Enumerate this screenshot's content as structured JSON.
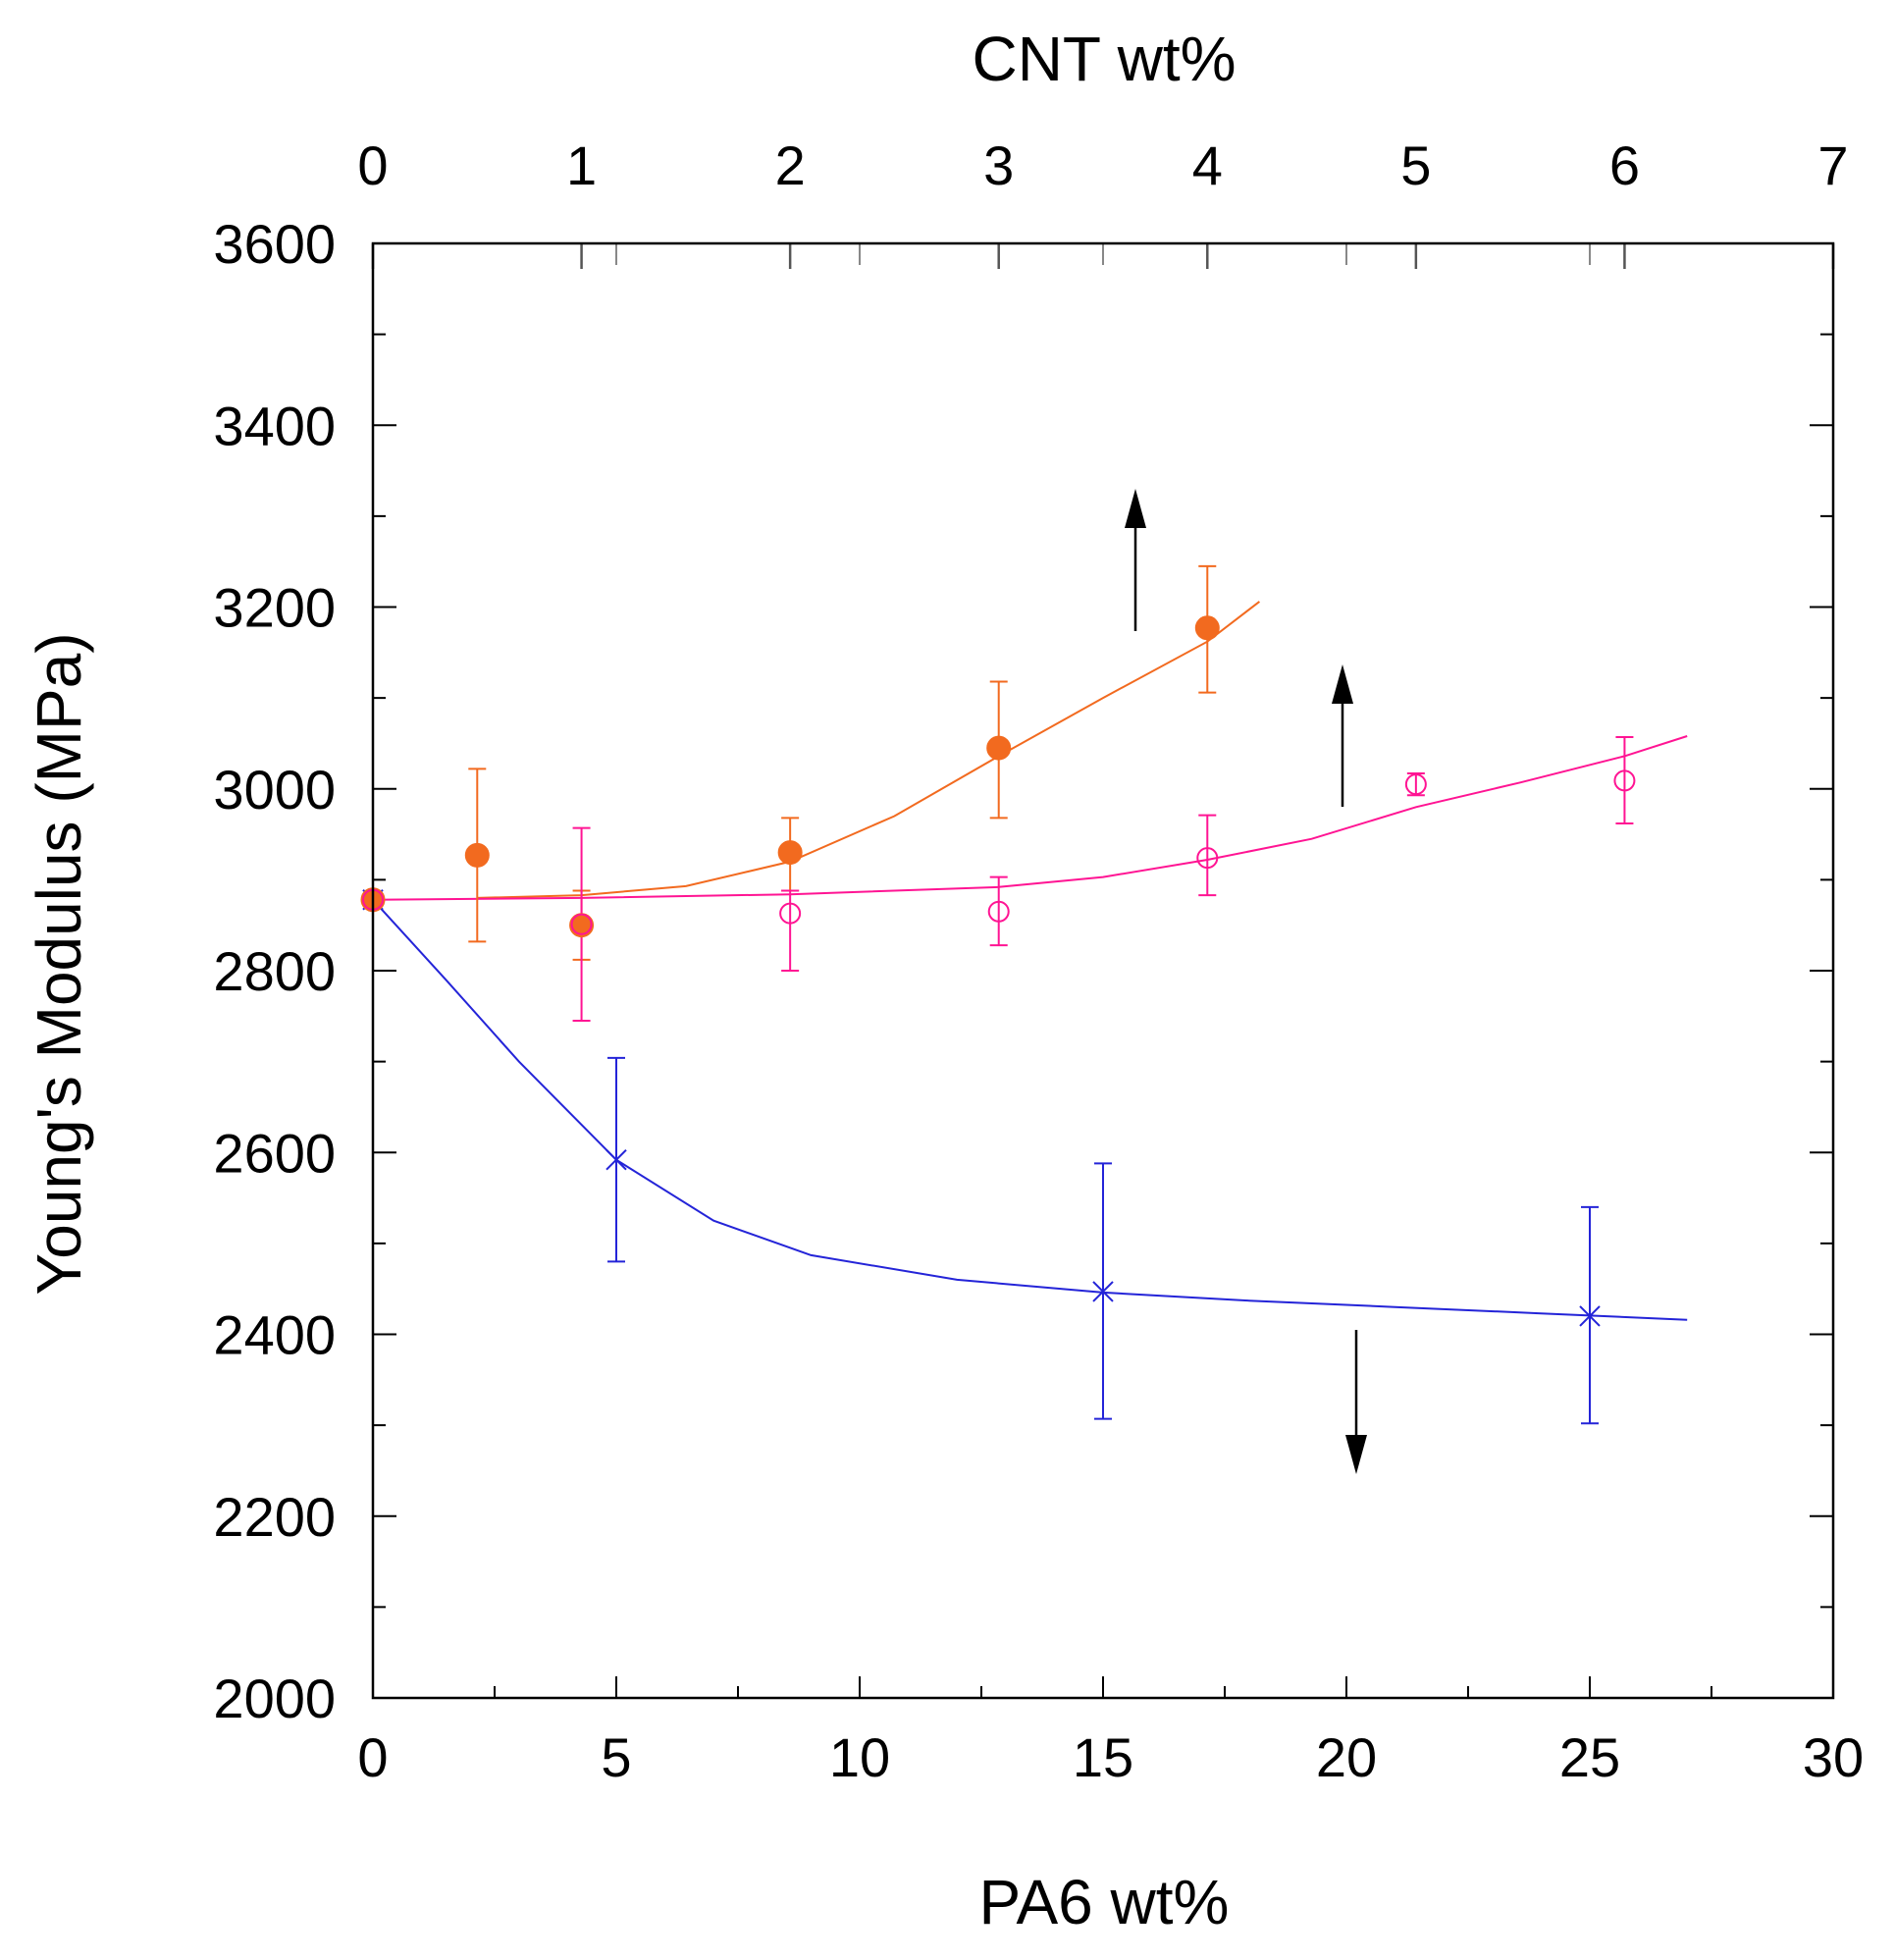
{
  "chart_data": {
    "type": "scatter",
    "title": "",
    "xlabel": "PA6 wt%",
    "x2label": "CNT wt%",
    "ylabel": "Young's Modulus (MPa)",
    "xlim": [
      0,
      30
    ],
    "x2lim": [
      0,
      7
    ],
    "ylim": [
      2000,
      3600
    ],
    "xticks": [
      "0",
      "5",
      "10",
      "15",
      "20",
      "25",
      "30"
    ],
    "x2ticks": [
      "0",
      "1",
      "2",
      "3",
      "4",
      "5",
      "6",
      "7"
    ],
    "yticks": [
      "2000",
      "2200",
      "2400",
      "2600",
      "2800",
      "3000",
      "3200",
      "3400",
      "3600"
    ],
    "grid": false,
    "series": [
      {
        "name": "PA6 (blue, bottom axis)",
        "axis": "bottom",
        "marker": "x",
        "color": "#2424d8",
        "x": [
          0,
          5,
          15,
          25
        ],
        "y": [
          2878,
          2592,
          2447,
          2420
        ],
        "err_low": [
          2878,
          2480,
          2307,
          2302
        ],
        "err_high": [
          2878,
          2704,
          2588,
          2540
        ],
        "fit_x": [
          0,
          1.5,
          3,
          5,
          7,
          9,
          12,
          15,
          18,
          21,
          24,
          27
        ],
        "fit_y": [
          2878,
          2790,
          2700,
          2592,
          2525,
          2487,
          2460,
          2446,
          2437,
          2430,
          2423,
          2416
        ]
      },
      {
        "name": "CNT filled circles (orange, top axis)",
        "axis": "top",
        "marker": "filled-circle",
        "color": "#f26a1f",
        "x": [
          0,
          0.5,
          1,
          2,
          3,
          4
        ],
        "y": [
          2878,
          2927,
          2850,
          2930,
          3045,
          3177
        ],
        "err_low": [
          2878,
          2832,
          2812,
          2888,
          2968,
          3106
        ],
        "err_high": [
          2878,
          3022,
          2888,
          2968,
          3118,
          3245
        ],
        "fit_x": [
          0.5,
          1,
          1.5,
          2,
          2.5,
          3,
          3.5,
          4,
          4.25
        ],
        "fit_y": [
          2880,
          2883,
          2893,
          2920,
          2970,
          3036,
          3100,
          3162,
          3206
        ]
      },
      {
        "name": "CNT open circles (magenta, top axis)",
        "axis": "top",
        "marker": "open-circle",
        "color": "#ff1493",
        "x": [
          0,
          1,
          2,
          3,
          4,
          5,
          6
        ],
        "y": [
          2878,
          2851,
          2863,
          2865,
          2924,
          3005,
          3009
        ],
        "err_low": [
          2878,
          2745,
          2800,
          2828,
          2883,
          2993,
          2962
        ],
        "err_high": [
          2878,
          2957,
          2888,
          2903,
          2971,
          3017,
          3057
        ],
        "fit_x": [
          0,
          1,
          2,
          3,
          3.5,
          4,
          4.5,
          5,
          5.5,
          6,
          6.3
        ],
        "fit_y": [
          2878,
          2880,
          2884,
          2892,
          2903,
          2922,
          2945,
          2980,
          3007,
          3036,
          3058
        ]
      }
    ],
    "annotations": [
      {
        "type": "arrow",
        "direction": "up",
        "series": "CNT filled circles (orange, top axis)"
      },
      {
        "type": "arrow",
        "direction": "up",
        "series": "CNT open circles (magenta, top axis)"
      },
      {
        "type": "arrow",
        "direction": "down",
        "series": "PA6 (blue, bottom axis)"
      }
    ]
  }
}
